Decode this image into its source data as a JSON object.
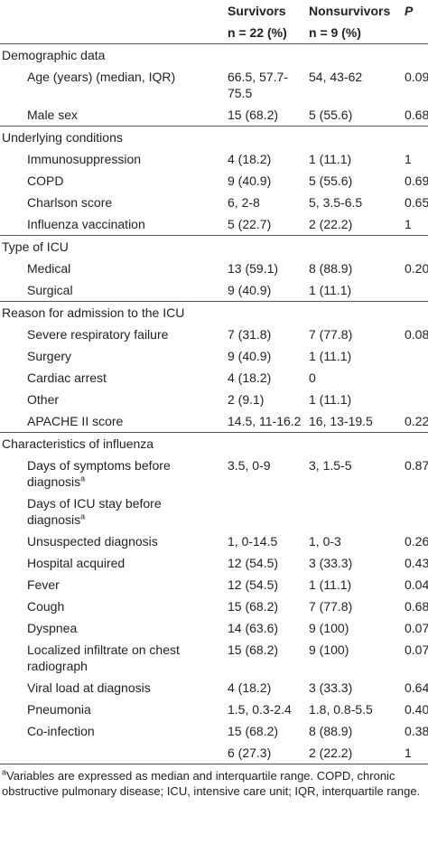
{
  "header": {
    "columns": [
      "Survivors",
      "Nonsurvivors",
      "P"
    ],
    "subheaders": [
      "n = 22 (%)",
      "n = 9 (%)"
    ]
  },
  "sections": [
    {
      "title": "Demographic data",
      "rows": [
        {
          "label": "Age (years) (median, IQR)",
          "survivors": "66.5, 57.7-75.5",
          "nonsurvivors": "54, 43-62",
          "p": "0.09"
        },
        {
          "label": "Male sex",
          "survivors": "15 (68.2)",
          "nonsurvivors": "5 (55.6)",
          "p": "0.68"
        }
      ]
    },
    {
      "title": "Underlying conditions",
      "rows": [
        {
          "label": "Immunosuppression",
          "survivors": "4 (18.2)",
          "nonsurvivors": "1 (11.1)",
          "p": "1"
        },
        {
          "label": "COPD",
          "survivors": "9 (40.9)",
          "nonsurvivors": "5 (55.6)",
          "p": "0.69"
        },
        {
          "label": "Charlson score",
          "survivors": "6, 2-8",
          "nonsurvivors": "5, 3.5-6.5",
          "p": "0.65"
        },
        {
          "label": "Influenza vaccination",
          "survivors": "5 (22.7)",
          "nonsurvivors": "2 (22.2)",
          "p": "1"
        }
      ]
    },
    {
      "title": "Type of ICU",
      "rows": [
        {
          "label": "Medical",
          "survivors": "13 (59.1)",
          "nonsurvivors": "8 (88.9)",
          "p": "0.20"
        },
        {
          "label": "Surgical",
          "survivors": "9 (40.9)",
          "nonsurvivors": "1 (11.1)"
        }
      ]
    },
    {
      "title": "Reason for admission to the ICU",
      "rows": [
        {
          "label": "Severe respiratory failure",
          "survivors": "7 (31.8)",
          "nonsurvivors": "7 (77.8)",
          "p": "0.08"
        },
        {
          "label": "Surgery",
          "survivors": "9 (40.9)",
          "nonsurvivors": "1 (11.1)"
        },
        {
          "label": "Cardiac arrest",
          "survivors": "4 (18.2)",
          "nonsurvivors": "0"
        },
        {
          "label": "Other",
          "survivors": "2 (9.1)",
          "nonsurvivors": "1 (11.1)"
        },
        {
          "label": "APACHE II score",
          "survivors": "14.5, 11-16.2",
          "nonsurvivors": "16, 13-19.5",
          "p": "0.22"
        }
      ]
    },
    {
      "title": "Characteristics of influenza",
      "rows": [
        {
          "label": "Days of symptoms before diagnosis",
          "note": "a",
          "survivors": "3.5, 0-9",
          "nonsurvivors": "3, 1.5-5",
          "p": "0.87"
        },
        {
          "label": "Days of ICU stay before diagnosis",
          "note": "a"
        },
        {
          "label": "Unsuspected diagnosis",
          "survivors": "1, 0-14.5",
          "nonsurvivors": "1, 0-3",
          "p": "0.26"
        },
        {
          "label": "Hospital acquired",
          "survivors": "12 (54.5)",
          "nonsurvivors": "3 (33.3)",
          "p": "0.43"
        },
        {
          "label": "Fever",
          "survivors": "12 (54.5)",
          "nonsurvivors": "1 (11.1)",
          "p": "0.04"
        },
        {
          "label": "Cough",
          "survivors": "15 (68.2)",
          "nonsurvivors": "7 (77.8)",
          "p": "0.68"
        },
        {
          "label": "Dyspnea",
          "survivors": "14 (63.6)",
          "nonsurvivors": "9 (100)",
          "p": "0.07"
        },
        {
          "label": "Localized infiltrate on chest radiograph",
          "survivors": "15 (68.2)",
          "nonsurvivors": "9 (100)",
          "p": "0.07"
        },
        {
          "label": "Viral load at diagnosis",
          "survivors": "4 (18.2)",
          "nonsurvivors": "3 (33.3)",
          "p": "0.64"
        },
        {
          "label": "Pneumonia",
          "survivors": "1.5, 0.3-2.4",
          "nonsurvivors": "1.8, 0.8-5.5",
          "p": "0.40"
        },
        {
          "label": "Co-infection",
          "survivors": "15 (68.2)",
          "nonsurvivors": "8 (88.9)",
          "p": "0.38"
        },
        {
          "survivors": "6 (27.3)",
          "nonsurvivors": "2 (22.2)",
          "p": "1"
        }
      ]
    }
  ],
  "footnote": {
    "note": "a",
    "text": "Variables are expressed as median and interquartile range. COPD, chronic obstructive pulmonary disease; ICU, intensive care unit; IQR, interquartile range."
  }
}
